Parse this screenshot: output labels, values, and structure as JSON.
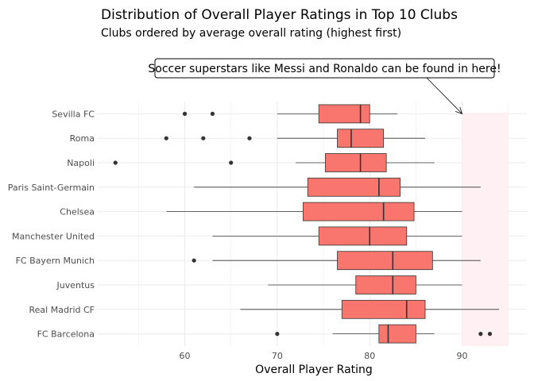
{
  "chart_data": {
    "type": "boxplot",
    "title": "Distribution of Overall Player Ratings in Top 10 Clubs",
    "subtitle": "Clubs ordered by average overall rating (highest first)",
    "xlabel": "Overall Player Rating",
    "ylabel": "",
    "xlim": [
      50.5,
      97
    ],
    "x_ticks": [
      60,
      70,
      80,
      90
    ],
    "x_tick_labels": [
      "60",
      "70",
      "80",
      "90"
    ],
    "grid": true,
    "box_color": "#F8766D",
    "highlight": {
      "xmin": 90,
      "xmax": 95,
      "color": "#FFF0F3"
    },
    "annotation": {
      "text": "Soccer superstars like Messi and Ronaldo can be found in here!",
      "arrow_to": {
        "x": 90,
        "y": "Sevilla FC"
      }
    },
    "categories": [
      "Sevilla FC",
      "Roma",
      "Napoli",
      "Paris Saint-Germain",
      "Chelsea",
      "Manchester United",
      "FC Bayern Munich",
      "Juventus",
      "Real Madrid CF",
      "FC Barcelona"
    ],
    "boxes": [
      {
        "name": "Sevilla FC",
        "whisker_low": 70,
        "q1": 74.5,
        "median": 79,
        "q3": 80,
        "whisker_high": 83,
        "outliers": [
          60,
          63
        ]
      },
      {
        "name": "Roma",
        "whisker_low": 70,
        "q1": 76.5,
        "median": 78,
        "q3": 81.5,
        "whisker_high": 86,
        "outliers": [
          58,
          62,
          67
        ]
      },
      {
        "name": "Napoli",
        "whisker_low": 72,
        "q1": 75.2,
        "median": 79,
        "q3": 81.8,
        "whisker_high": 87,
        "outliers": [
          52.5,
          65
        ]
      },
      {
        "name": "Paris Saint-Germain",
        "whisker_low": 61,
        "q1": 73.3,
        "median": 81,
        "q3": 83.3,
        "whisker_high": 92,
        "outliers": []
      },
      {
        "name": "Chelsea",
        "whisker_low": 58,
        "q1": 72.8,
        "median": 81.5,
        "q3": 84.8,
        "whisker_high": 90,
        "outliers": []
      },
      {
        "name": "Manchester United",
        "whisker_low": 63,
        "q1": 74.5,
        "median": 80,
        "q3": 84,
        "whisker_high": 90,
        "outliers": []
      },
      {
        "name": "FC Bayern Munich",
        "whisker_low": 63,
        "q1": 76.5,
        "median": 82.5,
        "q3": 86.8,
        "whisker_high": 92,
        "outliers": [
          61
        ]
      },
      {
        "name": "Juventus",
        "whisker_low": 69,
        "q1": 78.5,
        "median": 82.5,
        "q3": 85,
        "whisker_high": 90,
        "outliers": []
      },
      {
        "name": "Real Madrid CF",
        "whisker_low": 66,
        "q1": 77,
        "median": 84,
        "q3": 86,
        "whisker_high": 94,
        "outliers": []
      },
      {
        "name": "FC Barcelona",
        "whisker_low": 76,
        "q1": 81,
        "median": 82,
        "q3": 85,
        "whisker_high": 87,
        "outliers": [
          70,
          92,
          93
        ]
      }
    ]
  }
}
